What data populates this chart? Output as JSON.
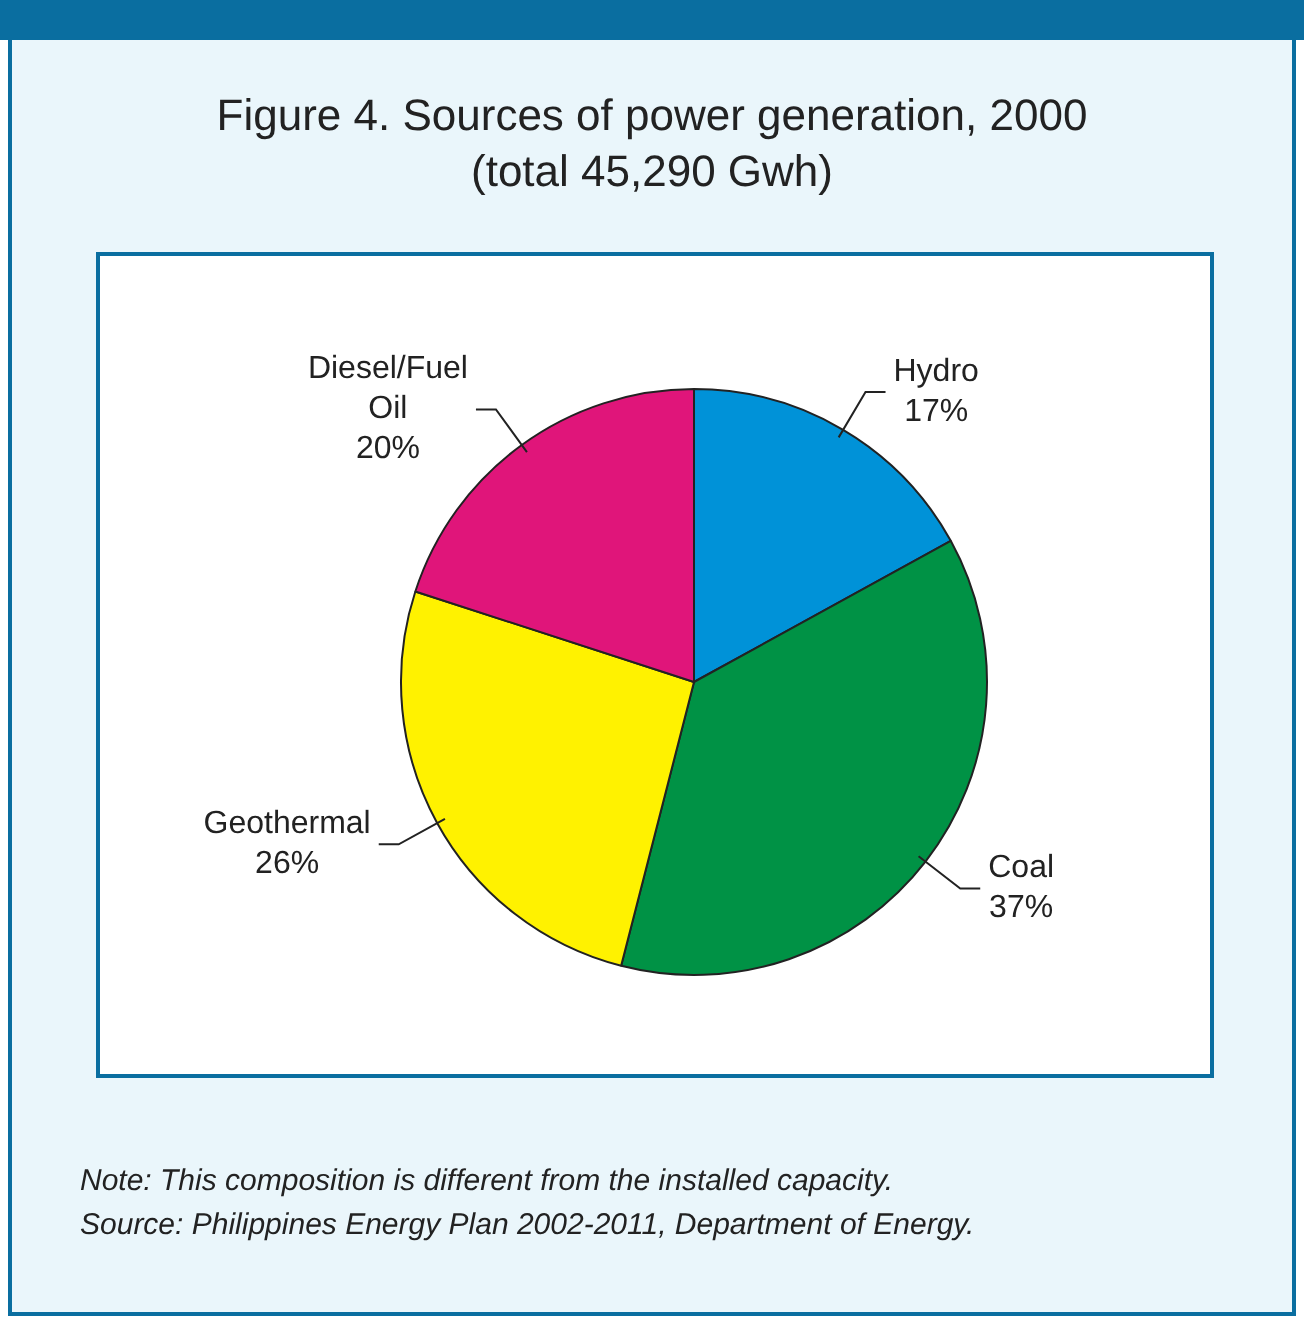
{
  "chart_data": {
    "type": "pie",
    "title": "Figure 4. Sources of power generation, 2000",
    "subtitle": "(total 45,290 Gwh)",
    "categories": [
      "Hydro",
      "Coal",
      "Geothermal",
      "Diesel/Fuel Oil"
    ],
    "values": [
      17,
      37,
      26,
      20
    ],
    "value_labels": [
      "17%",
      "37%",
      "26%",
      "20%"
    ],
    "colors": [
      "#0092d8",
      "#009245",
      "#fff200",
      "#e0157a"
    ],
    "legend": false,
    "annotations": [
      "Note: This composition is different from the installed capacity.",
      "Source: Philippines Energy Plan 2002-2011, Department of Energy."
    ]
  }
}
